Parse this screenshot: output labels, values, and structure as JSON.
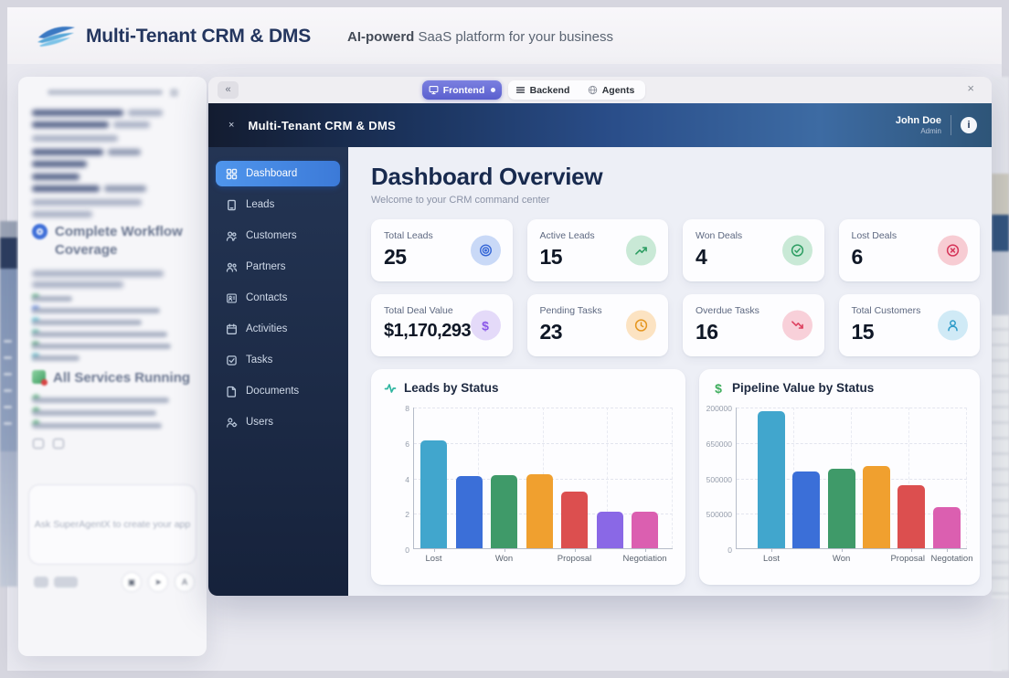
{
  "topbar": {
    "title": "Multi-Tenant CRM & DMS",
    "tagline_bold": "AI-powerd",
    "tagline_rest": " SaaS platform for your business"
  },
  "tabbar": {
    "collapse_label": "«",
    "close_label": "×",
    "tabs": [
      {
        "label": "Frontend",
        "icon": "monitor",
        "active": true
      },
      {
        "label": "Backend",
        "icon": "menu",
        "active": false
      },
      {
        "label": "Agents",
        "icon": "globe",
        "active": false
      }
    ]
  },
  "app": {
    "header": {
      "close_label": "×",
      "title": "Multi-Tenant CRM & DMS",
      "user_name": "John Doe",
      "user_role": "Admin"
    },
    "sidebar": [
      {
        "label": "Dashboard",
        "icon": "dashboard",
        "active": true
      },
      {
        "label": "Leads",
        "icon": "leads",
        "active": false
      },
      {
        "label": "Customers",
        "icon": "customers",
        "active": false
      },
      {
        "label": "Partners",
        "icon": "partners",
        "active": false
      },
      {
        "label": "Contacts",
        "icon": "contacts",
        "active": false
      },
      {
        "label": "Activities",
        "icon": "activities",
        "active": false
      },
      {
        "label": "Tasks",
        "icon": "tasks",
        "active": false
      },
      {
        "label": "Documents",
        "icon": "documents",
        "active": false
      },
      {
        "label": "Users",
        "icon": "users",
        "active": false
      }
    ],
    "main": {
      "title": "Dashboard Overview",
      "subtitle": "Welcome to your CRM command center",
      "stats": [
        {
          "label": "Total Leads",
          "value": "25",
          "icon": "target",
          "icon_color": "#3566d6",
          "icon_bg": "#c9d9f7",
          "big": false
        },
        {
          "label": "Active Leads",
          "value": "15",
          "icon": "trend-up",
          "icon_color": "#2e9e63",
          "icon_bg": "#c9e9d6",
          "big": false
        },
        {
          "label": "Won Deals",
          "value": "4",
          "icon": "check-circle",
          "icon_color": "#2e9e63",
          "icon_bg": "#c9e9d6",
          "big": false
        },
        {
          "label": "Lost Deals",
          "value": "6",
          "icon": "x-circle",
          "icon_color": "#d6365a",
          "icon_bg": "#f7ccd3",
          "big": false
        },
        {
          "label": "Total Deal Value",
          "value": "$1,170,293",
          "icon": "dollar",
          "icon_color": "#8a57e8",
          "icon_bg": "#e4daf9",
          "big": true
        },
        {
          "label": "Pending Tasks",
          "value": "23",
          "icon": "clock",
          "icon_color": "#e5961f",
          "icon_bg": "#fce3c2",
          "big": false
        },
        {
          "label": "Overdue Tasks",
          "value": "16",
          "icon": "trend-down",
          "icon_color": "#dd4260",
          "icon_bg": "#f8d0d9",
          "big": false
        },
        {
          "label": "Total Customers",
          "value": "15",
          "icon": "user",
          "icon_color": "#2e9cc9",
          "icon_bg": "#d0eaf6",
          "big": false
        }
      ]
    }
  },
  "chart_data": [
    {
      "type": "bar",
      "title": "Leads by Status",
      "icon": "activity",
      "icon_color": "#2fb5a0",
      "ylim": [
        0,
        8
      ],
      "ytick_labels": [
        "8",
        "6",
        "4",
        "2",
        "0"
      ],
      "values": [
        6.1,
        4.1,
        4.15,
        4.2,
        3.2,
        2.05,
        2.05
      ],
      "max": 8,
      "colors": [
        "#41a6cd",
        "#3b6fd8",
        "#3f9a69",
        "#f0a02f",
        "#dc4f4f",
        "#8a68e6",
        "#db5fb0"
      ],
      "xtick_labels": [
        {
          "text": "Lost",
          "bar": 0,
          "dx": 0
        },
        {
          "text": "Won",
          "bar": 2,
          "dx": 0
        },
        {
          "text": "Proposal",
          "bar": 4,
          "dx": 0
        },
        {
          "text": "Negotiation",
          "bar": 6,
          "dx": 0
        }
      ],
      "grid": "dashed"
    },
    {
      "type": "bar",
      "title": "Pipeline Value by Status",
      "icon": "dollar",
      "icon_color": "#3fae5e",
      "ylim": [
        0,
        1200000
      ],
      "ytick_labels": [
        "200000",
        "650000",
        "500000",
        "500000",
        "0"
      ],
      "values": [
        1165000,
        650000,
        675000,
        700000,
        535000,
        350000
      ],
      "max": 1200000,
      "colors": [
        "#41a6cd",
        "#3b6fd8",
        "#3f9a69",
        "#f0a02f",
        "#dc4f4f",
        "#db5fb0"
      ],
      "xtick_labels": [
        {
          "text": "Lost",
          "bar": 0,
          "dx": 0
        },
        {
          "text": "Won",
          "bar": 2,
          "dx": 0
        },
        {
          "text": "Proposal",
          "bar": 4,
          "dx": -4
        },
        {
          "text": "Negotation",
          "bar": 5,
          "dx": 6
        }
      ],
      "grid": "dashed"
    }
  ],
  "left_panel": {
    "heading1": "Complete Workflow Coverage",
    "heading2": "All Services Running",
    "input_placeholder": "Ask SuperAgentX to create your app"
  }
}
